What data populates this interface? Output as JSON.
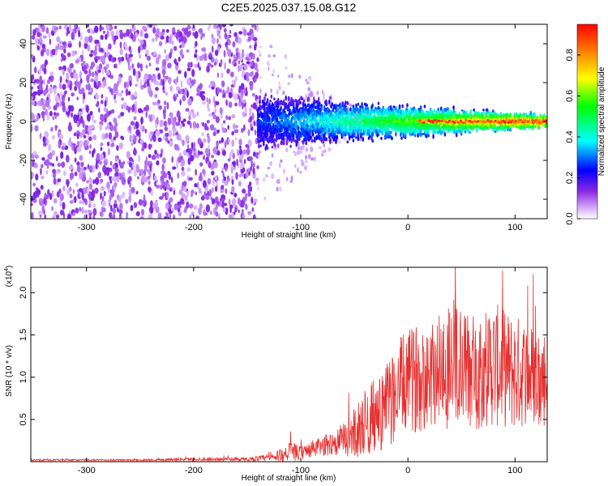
{
  "title": "C2E5.2025.037.15.08.G12",
  "chart_data": [
    {
      "type": "heatmap",
      "xlabel": "Height of straight line (km)",
      "ylabel": "Frequency (Hz)",
      "xlim": [
        -352,
        130
      ],
      "ylim": [
        -50,
        50
      ],
      "xticks": [
        -300,
        -200,
        -100,
        0,
        100
      ],
      "yticks": [
        -40,
        -20,
        0,
        20,
        40
      ],
      "colorbar": {
        "label": "Normalized spectral amplitude",
        "range": [
          0,
          0.95
        ],
        "ticks": [
          "0.0",
          "0.2",
          "0.4",
          "0.6",
          "0.8"
        ],
        "colors": [
          "#ffffff",
          "#d9b3ff",
          "#8a2be2",
          "#0000ff",
          "#00ffff",
          "#00ff00",
          "#ffff00",
          "#ff8000",
          "#ff0000"
        ]
      },
      "description_values": {
        "noise_region_x": [
          -352,
          -140
        ],
        "signal_start_x": -140,
        "signal_center_frequency": 0
      }
    },
    {
      "type": "line",
      "xlabel": "Height of straight line (km)",
      "ylabel": "SNR (10 * v/v)",
      "yscale_note": "(x10",
      "yscale_exp": "4",
      "yscale_close": ")",
      "xlim": [
        -352,
        130
      ],
      "ylim": [
        0,
        2.3
      ],
      "xticks": [
        -300,
        -200,
        -100,
        0,
        100
      ],
      "yticks": [
        "0.5",
        "1.0",
        "1.5",
        "2.0"
      ],
      "series": [
        {
          "color": "#e63030",
          "x": [
            -352,
            -300,
            -250,
            -200,
            -150,
            -125,
            -110,
            -100,
            -90,
            -80,
            -70,
            -60,
            -50,
            -40,
            -30,
            -20,
            -10,
            0,
            10,
            20,
            30,
            40,
            50,
            60,
            70,
            80,
            90,
            100,
            110,
            120,
            130
          ],
          "y": [
            0.02,
            0.02,
            0.02,
            0.03,
            0.03,
            0.05,
            0.12,
            0.1,
            0.15,
            0.18,
            0.22,
            0.25,
            0.35,
            0.45,
            0.55,
            0.65,
            0.85,
            0.95,
            1.0,
            1.05,
            1.1,
            1.15,
            1.1,
            1.05,
            1.1,
            1.15,
            1.1,
            1.05,
            1.05,
            1.0,
            1.0
          ],
          "spread": [
            0.01,
            0.01,
            0.01,
            0.02,
            0.02,
            0.05,
            0.12,
            0.08,
            0.1,
            0.12,
            0.15,
            0.2,
            0.3,
            0.4,
            0.45,
            0.5,
            0.6,
            0.6,
            0.65,
            0.65,
            0.7,
            0.8,
            0.75,
            0.7,
            0.7,
            0.75,
            0.7,
            0.7,
            0.65,
            0.6,
            0.6
          ]
        }
      ]
    }
  ]
}
